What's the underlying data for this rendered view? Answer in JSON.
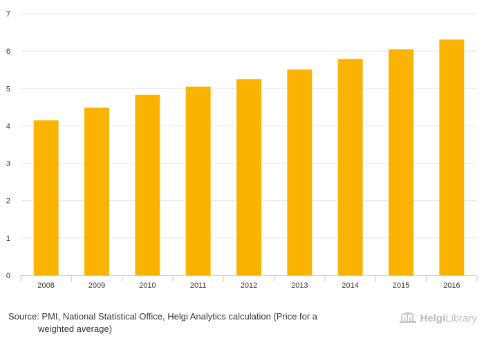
{
  "chart_data": {
    "type": "bar",
    "title": "",
    "xlabel": "",
    "ylabel": "",
    "categories": [
      "2008",
      "2009",
      "2010",
      "2011",
      "2012",
      "2013",
      "2014",
      "2015",
      "2016"
    ],
    "values": [
      4.15,
      4.49,
      4.83,
      5.05,
      5.25,
      5.51,
      5.79,
      6.05,
      6.31
    ],
    "ylim": [
      0,
      7
    ],
    "yticks": [
      "0",
      "1",
      "2",
      "3",
      "4",
      "5",
      "6",
      "7"
    ],
    "grid": true,
    "legend": "none",
    "bar_color": "#FAB300"
  },
  "source": {
    "line1": "Source: PMI, National Statistical Office, Helgi Analytics calculation (Price for a",
    "line2": "weighted average)"
  },
  "logo": {
    "part1": "Helgi",
    "part2": "Library",
    "color": "#BCBCBC"
  }
}
